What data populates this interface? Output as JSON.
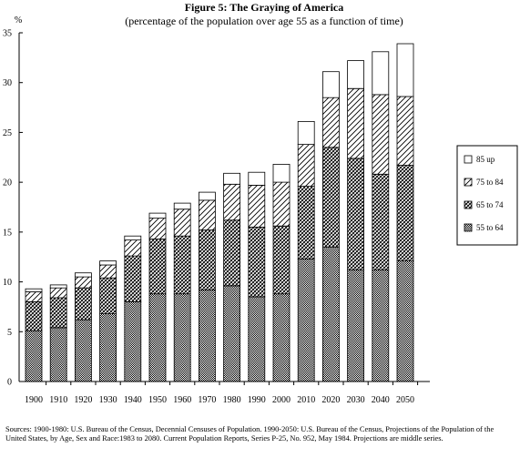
{
  "chart_data": {
    "type": "bar",
    "stacked": true,
    "title": "Figure 5:   The Graying of America",
    "subtitle": "(percentage of the population over age 55 as a function of time)",
    "xlabel": "",
    "ylabel": "%",
    "ylim": [
      0,
      35
    ],
    "yticks": [
      0,
      5,
      10,
      15,
      20,
      25,
      30,
      35
    ],
    "grid": false,
    "legend_position": "right",
    "categories": [
      "1900",
      "1910",
      "1920",
      "1930",
      "1940",
      "1950",
      "1960",
      "1970",
      "1980",
      "1990",
      "2000",
      "2010",
      "2020",
      "2030",
      "2040",
      "2050"
    ],
    "series": [
      {
        "name": "55 to 64",
        "values": [
          5.1,
          5.4,
          6.2,
          6.8,
          8.0,
          8.8,
          8.8,
          9.2,
          9.6,
          8.5,
          8.8,
          12.3,
          13.5,
          11.2,
          11.2,
          12.1
        ]
      },
      {
        "name": "65 to 74",
        "values": [
          2.9,
          3.0,
          3.2,
          3.6,
          4.6,
          5.5,
          5.8,
          6.0,
          6.6,
          7.0,
          6.8,
          7.3,
          10.0,
          11.2,
          9.6,
          9.6
        ]
      },
      {
        "name": "75 to 84",
        "values": [
          1.0,
          1.0,
          1.1,
          1.3,
          1.6,
          2.1,
          2.7,
          3.0,
          3.6,
          4.2,
          4.4,
          4.2,
          5.0,
          7.0,
          8.0,
          6.9
        ]
      },
      {
        "name": "85 up",
        "values": [
          0.3,
          0.3,
          0.4,
          0.4,
          0.4,
          0.5,
          0.6,
          0.8,
          1.1,
          1.3,
          1.8,
          2.3,
          2.6,
          2.8,
          4.3,
          5.3
        ]
      }
    ]
  },
  "legend": [
    "85 up",
    "75 to 84",
    "65 to 74",
    "55 to 64"
  ],
  "source_text": "Sources: 1900-1980: U.S. Bureau of the Census,  Decennial Censuses of Population.  1990-2050: U.S. Bureau of the Census, Projections of the Population of the United States, by Age, Sex and Race:1983 to 2080.  Current Population Reports, Series P-25, No. 952, May 1984.  Projections are middle series."
}
